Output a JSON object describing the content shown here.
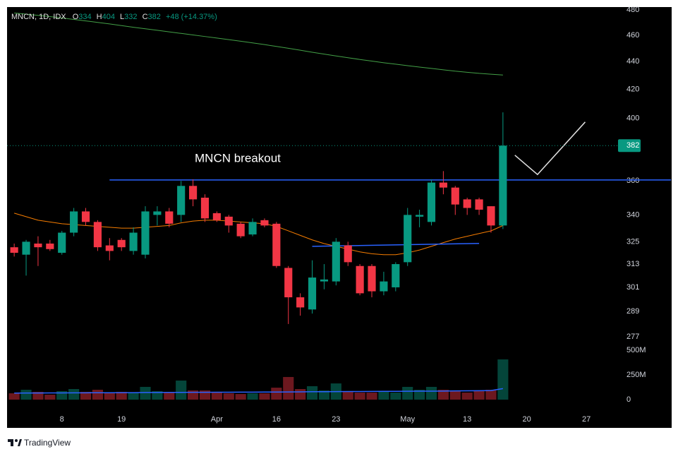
{
  "chart_data": {
    "type": "candlestick",
    "symbol": "MNCN, 1D, IDX",
    "ohlc_labels": [
      "O",
      "H",
      "L",
      "C"
    ],
    "change_label": "+48 (+14.37%)",
    "annotation": "MNCN breakout",
    "footer": "TradingView",
    "log_scale": true,
    "up_color": "#089981",
    "down_color": "#f23645",
    "open": [
      322,
      318,
      324,
      324,
      319,
      330,
      342,
      336,
      323,
      326,
      320,
      318,
      340,
      342,
      340,
      357,
      350,
      341,
      339,
      335,
      329,
      337,
      335,
      311,
      296,
      290,
      304,
      304,
      323,
      312,
      312,
      299,
      301,
      314,
      339,
      336,
      359,
      356,
      349,
      349,
      345,
      334
    ],
    "high": [
      324,
      326,
      328,
      326,
      331,
      344,
      344,
      337,
      327,
      327,
      333,
      345,
      345,
      344,
      360,
      361,
      352,
      342,
      340,
      336,
      338,
      338,
      336,
      312,
      298,
      315,
      313,
      327,
      325,
      313,
      313,
      309,
      314,
      344,
      343,
      361,
      366,
      357,
      350,
      350,
      345,
      404
    ],
    "low": [
      317,
      307,
      312,
      320,
      318,
      328,
      334,
      320,
      315,
      320,
      318,
      316,
      334,
      333,
      336,
      345,
      336,
      336,
      330,
      327,
      328,
      333,
      311,
      283,
      287,
      288,
      300,
      302,
      312,
      297,
      296,
      297,
      299,
      312,
      333,
      334,
      352,
      340,
      340,
      340,
      330,
      332
    ],
    "close": [
      319,
      325,
      322,
      321,
      330,
      342,
      336,
      322,
      320,
      322,
      330,
      342,
      342,
      335,
      357,
      349,
      338,
      337,
      334,
      328,
      336,
      334,
      312,
      296,
      291,
      306,
      305,
      325,
      314,
      298,
      299,
      304,
      313,
      340,
      340,
      359,
      356,
      346,
      344,
      343,
      334,
      382
    ],
    "volume": [
      64,
      100,
      79,
      50,
      86,
      107,
      79,
      100,
      71,
      79,
      71,
      129,
      86,
      71,
      193,
      93,
      93,
      71,
      64,
      57,
      64,
      64,
      121,
      229,
      107,
      136,
      93,
      164,
      79,
      71,
      71,
      79,
      71,
      129,
      100,
      129,
      100,
      93,
      71,
      93,
      100,
      407
    ],
    "moving_averages": [
      {
        "color": "#43a047",
        "values": [
          477.5,
          476.6,
          475.6,
          474.6,
          473.5,
          472.4,
          471.2,
          470,
          468.8,
          467.5,
          466.2,
          465,
          463.8,
          462.6,
          461.4,
          460.2,
          459,
          457.8,
          456.6,
          455.4,
          454.1,
          452.8,
          451.4,
          450,
          448.5,
          447,
          445.6,
          444.2,
          442.9,
          441.6,
          440.4,
          439.2,
          438.1,
          437,
          436,
          435,
          434,
          433,
          432.2,
          431.4,
          430.8,
          430.2
        ]
      },
      {
        "color": "#f57c00",
        "values": [
          341,
          339,
          337,
          336,
          335,
          334.5,
          334,
          333.5,
          333,
          332.5,
          332.5,
          333,
          333.5,
          334,
          335.5,
          336.5,
          337,
          337,
          336.5,
          336,
          335.5,
          335,
          333.5,
          331,
          328.5,
          326,
          324,
          322.5,
          321,
          319.5,
          318.5,
          318,
          318,
          319,
          320.5,
          322.5,
          324.5,
          326.5,
          328,
          329.5,
          331,
          334
        ]
      }
    ],
    "volume_ma": {
      "color": "#2962ff",
      "values": [
        66,
        67,
        67,
        68,
        68,
        69,
        69,
        70,
        70,
        71,
        71,
        72,
        72,
        73,
        73,
        74,
        74,
        75,
        75,
        76,
        76,
        77,
        77,
        78,
        79,
        80,
        80,
        81,
        82,
        82,
        83,
        84,
        84,
        85,
        86,
        86,
        87,
        88,
        89,
        90,
        92,
        112
      ]
    },
    "trendlines": [
      {
        "color": "#2962ff",
        "x": [
          8,
          55.1
        ],
        "y": [
          360.6,
          360.6
        ]
      },
      {
        "color": "#2962ff",
        "x": [
          25,
          39
        ],
        "y": [
          322.5,
          324.1
        ]
      },
      {
        "color": "#e0e0e0",
        "x": [
          42,
          43.9,
          47.9
        ],
        "y": [
          375.9,
          363.9,
          397.5
        ]
      }
    ],
    "xlim": [
      -0.6,
      50.3
    ],
    "xticks": [
      {
        "value": 4,
        "label": "8"
      },
      {
        "value": 9,
        "label": "19"
      },
      {
        "value": 17,
        "label": "Apr"
      },
      {
        "value": 22,
        "label": "16"
      },
      {
        "value": 27,
        "label": "23"
      },
      {
        "value": 33,
        "label": "May"
      },
      {
        "value": 38,
        "label": "13"
      },
      {
        "value": 43,
        "label": "20"
      },
      {
        "value": 48,
        "label": "27"
      }
    ],
    "ylim": [
      244.5,
      482.3
    ],
    "yticks": [
      480,
      460,
      440,
      420,
      400,
      360,
      340,
      325,
      313,
      301,
      289,
      277
    ],
    "vlim": [
      0,
      543
    ],
    "vticks": [
      {
        "value": 500,
        "label": "500M"
      },
      {
        "value": 250,
        "label": "250M"
      },
      0
    ]
  }
}
